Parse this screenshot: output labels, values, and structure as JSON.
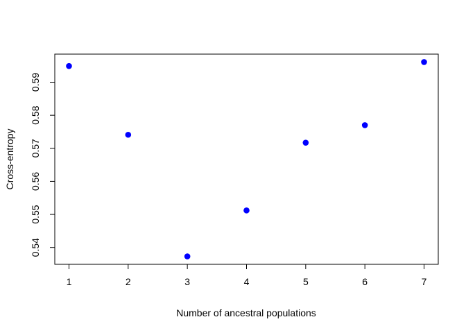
{
  "chart_data": {
    "type": "scatter",
    "title": "",
    "xlabel": "Number of ancestral populations",
    "ylabel": "Cross-entropy",
    "x": [
      1,
      2,
      3,
      4,
      5,
      6,
      7
    ],
    "y": [
      0.5949,
      0.5741,
      0.5373,
      0.5512,
      0.5717,
      0.577,
      0.5961
    ],
    "xlim": [
      0.76,
      7.24
    ],
    "ylim": [
      0.5349,
      0.5985
    ],
    "xticks": [
      "1",
      "2",
      "3",
      "4",
      "5",
      "6",
      "7"
    ],
    "yticks": [
      "0.54",
      "0.55",
      "0.56",
      "0.57",
      "0.58",
      "0.59"
    ],
    "ytick_values": [
      0.54,
      0.55,
      0.56,
      0.57,
      0.58,
      0.59
    ],
    "point_color": "#0000ff",
    "grid": false,
    "legend": "none"
  }
}
